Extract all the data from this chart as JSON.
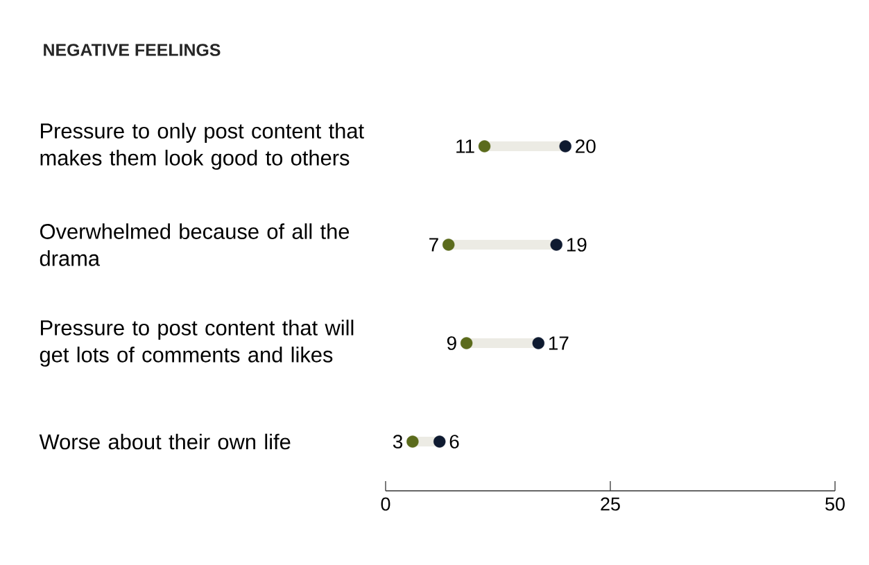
{
  "chart_data": {
    "type": "scatter",
    "orientation": "horizontal",
    "title": "NEGATIVE FEELINGS",
    "categories": [
      "Pressure to only post content that makes them look good to others",
      "Overwhelmed because of all the drama",
      "Pressure to post content that will get lots of comments and likes",
      "Worse about their own life"
    ],
    "series": [
      {
        "color": "#5b6b1c",
        "values": [
          11,
          7,
          9,
          3
        ]
      },
      {
        "color": "#0e1a30",
        "values": [
          20,
          19,
          17,
          6
        ]
      }
    ],
    "xlim": [
      0,
      50
    ],
    "xticks": [
      0,
      25,
      50
    ],
    "data_labels": true,
    "marker": "circle",
    "grid": false
  }
}
